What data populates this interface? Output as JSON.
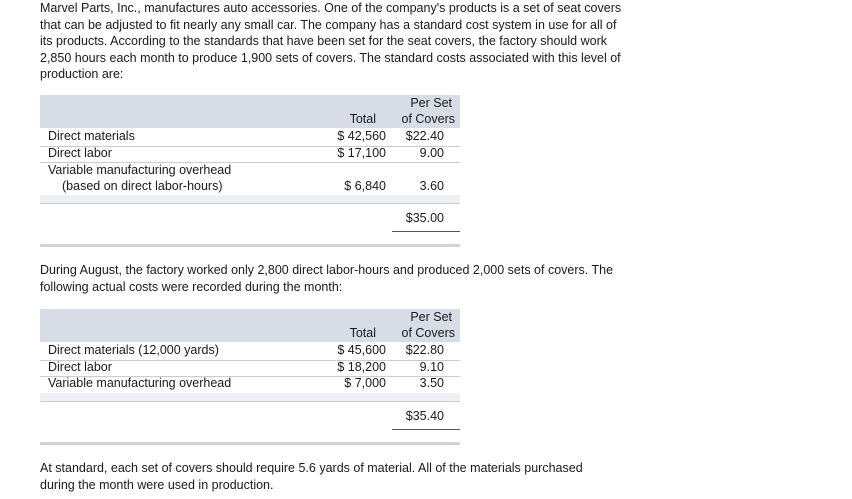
{
  "intro": {
    "lines": [
      "Marvel Parts, Inc., manufactures auto accessories. One of the company's products is a set of seat covers",
      "that can be adjusted to fit nearly any small car. The company has a standard cost system in use for all of",
      "its products. According to the standards that have been set for the seat covers, the factory should work",
      "2,850 hours each month to produce 1,900 sets of covers. The standard costs associated with this level of",
      "production are:"
    ]
  },
  "standard_table": {
    "header": {
      "per_set_1": "Per Set",
      "total": "Total",
      "per_set_2": "of Covers"
    },
    "rows": [
      {
        "label": "Direct materials",
        "total": "$ 42,560",
        "per_set": "$22.40"
      },
      {
        "label": "Direct labor",
        "total": "$ 17,100",
        "per_set": "9.00"
      },
      {
        "label": "Variable manufacturing overhead",
        "label2": "(based on direct labor-hours)",
        "total": "$  6,840",
        "per_set": "3.60"
      }
    ],
    "sum": "$35.00"
  },
  "august": {
    "lines": [
      "During August, the factory worked only 2,800 direct labor-hours and produced 2,000 sets of covers. The",
      "following actual costs were recorded during the month:"
    ]
  },
  "actual_table": {
    "header": {
      "per_set_1": "Per Set",
      "total": "Total",
      "per_set_2": "of Covers"
    },
    "rows": [
      {
        "label": "Direct materials (12,000 yards)",
        "total": "$ 45,600",
        "per_set": "$22.80"
      },
      {
        "label": "Direct labor",
        "total": "$ 18,200",
        "per_set": "9.10"
      },
      {
        "label": "Variable manufacturing overhead",
        "total": "$  7,000",
        "per_set": "3.50"
      }
    ],
    "sum": "$35.40"
  },
  "closing": {
    "lines": [
      "At standard, each set of covers should require 5.6 yards of material. All of the materials purchased",
      "during the month were used in production."
    ]
  }
}
